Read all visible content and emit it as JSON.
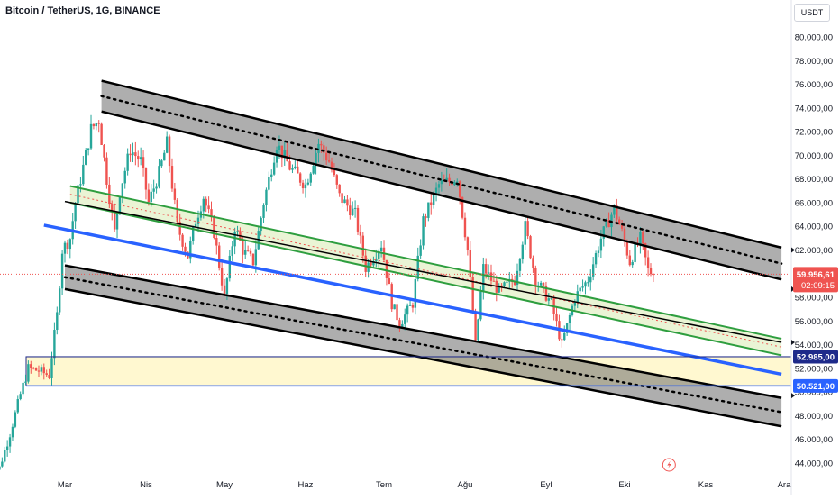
{
  "header": {
    "title": "Bitcoin / TetherUS, 1G, BINANCE",
    "currency": "USDT"
  },
  "chart_data": {
    "type": "candlestick",
    "symbol": "Bitcoin / TetherUS",
    "interval": "1G",
    "exchange": "BINANCE",
    "quote_currency": "USDT",
    "ylim": [
      43000,
      81500
    ],
    "xlim": [
      "2024-02-01",
      "2024-11-30"
    ],
    "y_ticks": [
      "44.000,00",
      "46.000,00",
      "48.000,00",
      "50.000,00",
      "52.000,00",
      "54.000,00",
      "56.000,00",
      "58.000,00",
      "60.000,00",
      "62.000,00",
      "64.000,00",
      "66.000,00",
      "68.000,00",
      "70.000,00",
      "72.000,00",
      "74.000,00",
      "76.000,00",
      "78.000,00",
      "80.000,00"
    ],
    "y_tick_values": [
      44000,
      46000,
      48000,
      50000,
      52000,
      54000,
      56000,
      58000,
      60000,
      62000,
      64000,
      66000,
      68000,
      70000,
      72000,
      74000,
      76000,
      78000,
      80000
    ],
    "x_ticks": [
      "Mar",
      "Nis",
      "May",
      "Haz",
      "Tem",
      "Ağu",
      "Eyl",
      "Eki",
      "Kas",
      "Ara"
    ],
    "x_tick_dates": [
      "2024-03-01",
      "2024-04-01",
      "2024-05-01",
      "2024-06-01",
      "2024-07-01",
      "2024-08-01",
      "2024-09-01",
      "2024-10-01",
      "2024-11-01",
      "2024-12-01"
    ],
    "last_price_label": "59.956,61",
    "countdown_label": "02:09:15",
    "last_price": 59956.61,
    "zone": {
      "top_label": "52.985,00",
      "bottom_label": "50.521,00",
      "top": 52985,
      "bottom": 50521
    },
    "grid": false,
    "colors": {
      "up": "#26a69a",
      "down": "#ef5350",
      "blue": "#2962ff",
      "green": "#2e9e3f"
    },
    "anchors": [
      [
        "2024-02-01",
        43200
      ],
      [
        "2024-02-05",
        43600
      ],
      [
        "2024-02-09",
        46500
      ],
      [
        "2024-02-13",
        49800
      ],
      [
        "2024-02-16",
        52000
      ],
      [
        "2024-02-20",
        51800
      ],
      [
        "2024-02-24",
        51400
      ],
      [
        "2024-02-27",
        56500
      ],
      [
        "2024-02-29",
        62000
      ],
      [
        "2024-03-03",
        63000
      ],
      [
        "2024-03-05",
        66000
      ],
      [
        "2024-03-08",
        69000
      ],
      [
        "2024-03-11",
        72200
      ],
      [
        "2024-03-14",
        73000
      ],
      [
        "2024-03-17",
        68000
      ],
      [
        "2024-03-20",
        63500
      ],
      [
        "2024-03-22",
        67000
      ],
      [
        "2024-03-26",
        70500
      ],
      [
        "2024-03-30",
        69500
      ],
      [
        "2024-04-02",
        66000
      ],
      [
        "2024-04-06",
        68500
      ],
      [
        "2024-04-09",
        71000
      ],
      [
        "2024-04-13",
        64000
      ],
      [
        "2024-04-17",
        61500
      ],
      [
        "2024-04-20",
        64500
      ],
      [
        "2024-04-23",
        66500
      ],
      [
        "2024-04-27",
        63500
      ],
      [
        "2024-05-01",
        58000
      ],
      [
        "2024-05-05",
        64000
      ],
      [
        "2024-05-08",
        62000
      ],
      [
        "2024-05-12",
        61000
      ],
      [
        "2024-05-16",
        66000
      ],
      [
        "2024-05-21",
        71000
      ],
      [
        "2024-05-26",
        69000
      ],
      [
        "2024-06-01",
        67500
      ],
      [
        "2024-06-06",
        71000
      ],
      [
        "2024-06-10",
        69500
      ],
      [
        "2024-06-14",
        66500
      ],
      [
        "2024-06-20",
        65000
      ],
      [
        "2024-06-24",
        60500
      ],
      [
        "2024-06-30",
        62500
      ],
      [
        "2024-07-04",
        57500
      ],
      [
        "2024-07-07",
        55800
      ],
      [
        "2024-07-12",
        57500
      ],
      [
        "2024-07-16",
        64500
      ],
      [
        "2024-07-22",
        67500
      ],
      [
        "2024-07-26",
        67800
      ],
      [
        "2024-07-29",
        68200
      ],
      [
        "2024-08-02",
        62000
      ],
      [
        "2024-08-05",
        54000
      ],
      [
        "2024-08-08",
        60500
      ],
      [
        "2024-08-14",
        58500
      ],
      [
        "2024-08-20",
        59500
      ],
      [
        "2024-08-24",
        64000
      ],
      [
        "2024-08-28",
        59500
      ],
      [
        "2024-09-03",
        57500
      ],
      [
        "2024-09-07",
        54000
      ],
      [
        "2024-09-12",
        58000
      ],
      [
        "2024-09-17",
        59500
      ],
      [
        "2024-09-22",
        63000
      ],
      [
        "2024-09-27",
        65500
      ],
      [
        "2024-09-30",
        63500
      ],
      [
        "2024-10-03",
        61000
      ],
      [
        "2024-10-07",
        63000
      ],
      [
        "2024-10-10",
        60300
      ],
      [
        "2024-10-12",
        59956.61
      ]
    ]
  }
}
